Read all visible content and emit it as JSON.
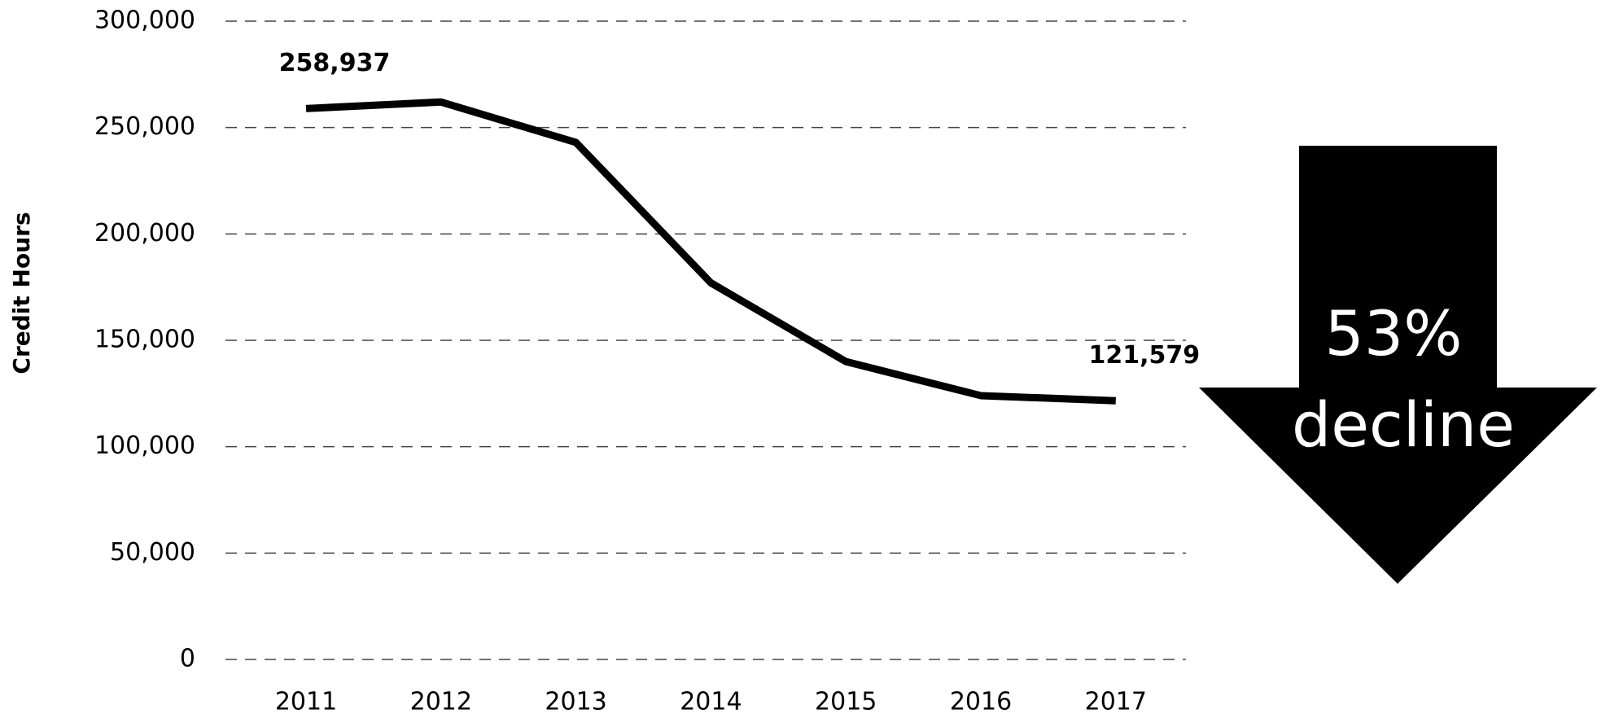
{
  "chart_data": {
    "type": "line",
    "y_label": "Credit Hours",
    "categories": [
      "2011",
      "2012",
      "2013",
      "2014",
      "2015",
      "2016",
      "2017"
    ],
    "series": [
      {
        "name": "Credit Hours",
        "color": "#000000",
        "values": [
          258937,
          262000,
          243000,
          177000,
          140000,
          124000,
          121579
        ],
        "value_labels": [
          "258,937",
          null,
          null,
          null,
          null,
          null,
          "121,579"
        ]
      }
    ],
    "ylim": [
      0,
      300000
    ],
    "yticks": [
      0,
      {
        "value": 50000,
        "label": "50,000"
      },
      {
        "value": 100000,
        "label": "100,000"
      },
      {
        "value": 150000,
        "label": "150,000"
      },
      {
        "value": 200000,
        "label": "200,000"
      },
      {
        "value": 250000,
        "label": "250,000"
      },
      {
        "value": 300000,
        "label": "300,000"
      }
    ],
    "grid": true,
    "annotation": [
      "53%",
      "decline"
    ]
  }
}
